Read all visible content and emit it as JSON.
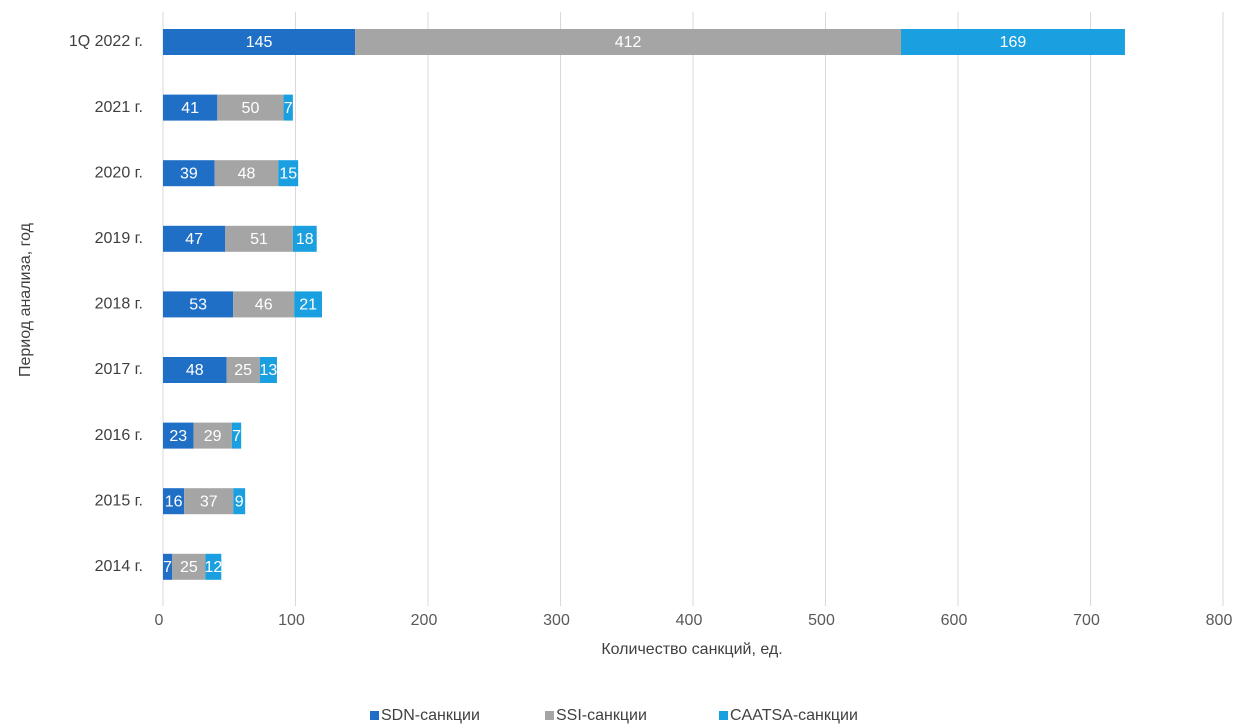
{
  "chart_data": {
    "type": "bar",
    "orientation": "horizontal",
    "stacked": true,
    "categories": [
      "1Q 2022 г.",
      "2021 г.",
      "2020 г.",
      "2019 г.",
      "2018 г.",
      "2017 г.",
      "2016 г.",
      "2015 г.",
      "2014 г."
    ],
    "series": [
      {
        "name": "SDN-санкции",
        "color": "#1f6fc6",
        "values": [
          145,
          41,
          39,
          47,
          53,
          48,
          23,
          16,
          7
        ]
      },
      {
        "name": "SSI-санкции",
        "color": "#a5a5a5",
        "values": [
          412,
          50,
          48,
          51,
          46,
          25,
          29,
          37,
          25
        ]
      },
      {
        "name": "CAATSA-санкции",
        "color": "#1aa0e0",
        "values": [
          169,
          7,
          15,
          18,
          21,
          13,
          7,
          9,
          12
        ]
      }
    ],
    "xlabel": "Количество санкций, ед.",
    "ylabel": "Период анализа, год",
    "xlim": [
      0,
      800
    ],
    "xticks": [
      0,
      100,
      200,
      300,
      400,
      500,
      600,
      700,
      800
    ],
    "grid": "vertical",
    "legend_position": "bottom"
  }
}
